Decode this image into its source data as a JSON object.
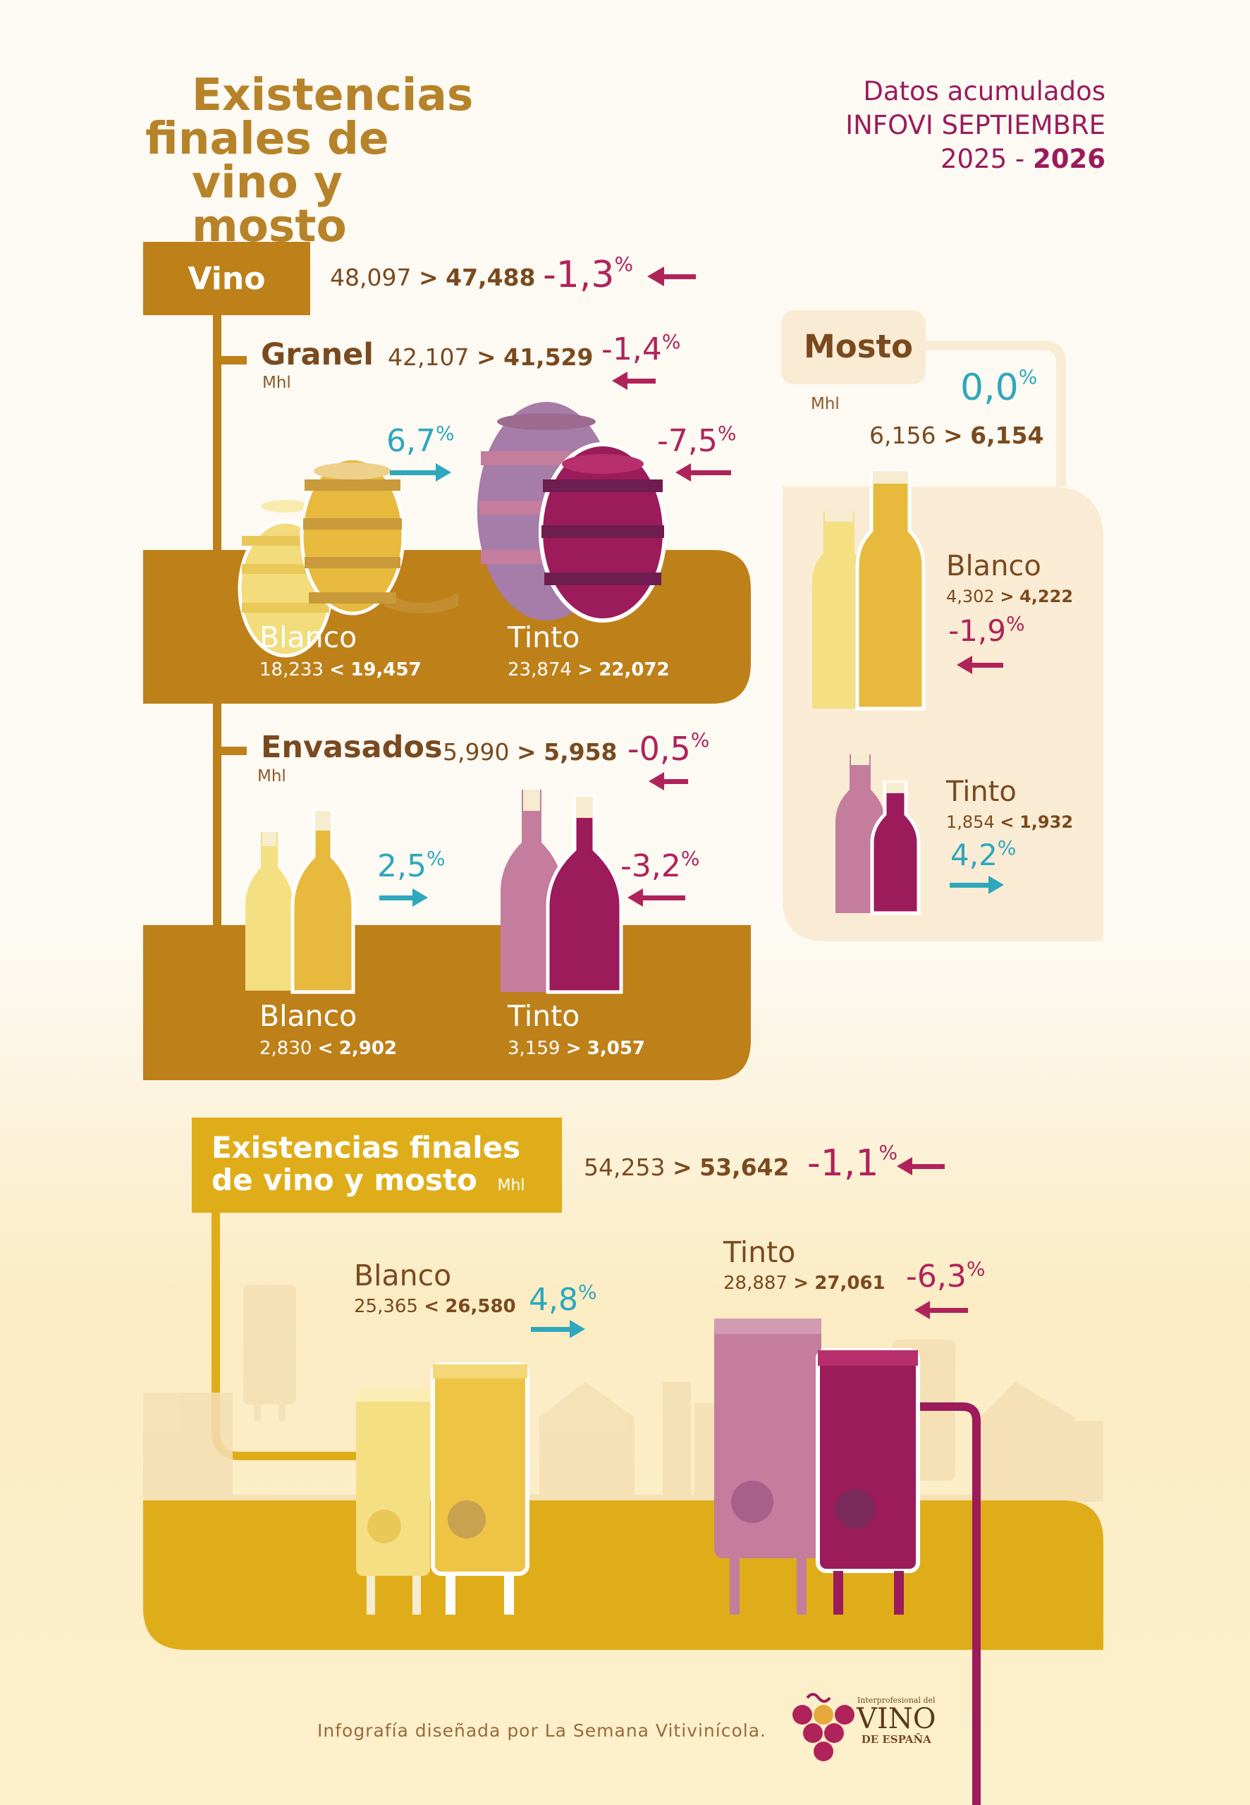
{
  "title": {
    "line1": "Existencias",
    "line2": "finales de",
    "line3": "vino y mosto"
  },
  "header": {
    "line1": "Datos acumulados",
    "line2": "INFOVI  SEPTIEMBRE",
    "year_from": "2025 -",
    "year_to": "2026"
  },
  "vino": {
    "label": "Vino",
    "from": "48,097",
    "sign": ">",
    "to": "47,488",
    "pct": "-1,3",
    "pct_sym": "%"
  },
  "granel": {
    "label": "Granel",
    "unit": "Mhl",
    "from": "42,107",
    "sign": ">",
    "to": "41,529",
    "pct": "-1,4",
    "pct_sym": "%",
    "blanco": {
      "label": "Blanco",
      "from": "18,233",
      "sign": "<",
      "to": "19,457",
      "pct": "6,7",
      "pct_sym": "%"
    },
    "tinto": {
      "label": "Tinto",
      "from": "23,874",
      "sign": ">",
      "to": "22,072",
      "pct": "-7,5",
      "pct_sym": "%"
    }
  },
  "envasados": {
    "label": "Envasados",
    "unit": "Mhl",
    "from": "5,990",
    "sign": ">",
    "to": "5,958",
    "pct": "-0,5",
    "pct_sym": "%",
    "blanco": {
      "label": "Blanco",
      "from": "2,830",
      "sign": "<",
      "to": "2,902",
      "pct": "2,5",
      "pct_sym": "%"
    },
    "tinto": {
      "label": "Tinto",
      "from": "3,159",
      "sign": ">",
      "to": "3,057",
      "pct": "-3,2",
      "pct_sym": "%"
    }
  },
  "mosto": {
    "label": "Mosto",
    "unit": "Mhl",
    "from": "6,156",
    "sign": ">",
    "to": "6,154",
    "pct": "0,0",
    "pct_sym": "%",
    "blanco": {
      "label": "Blanco",
      "from": "4,302",
      "sign": ">",
      "to": "4,222",
      "pct": "-1,9",
      "pct_sym": "%"
    },
    "tinto": {
      "label": "Tinto",
      "from": "1,854",
      "sign": "<",
      "to": "1,932",
      "pct": "4,2",
      "pct_sym": "%"
    }
  },
  "total": {
    "label_line1": "Existencias finales",
    "label_line2": "de vino y mosto",
    "unit": "Mhl",
    "from": "54,253",
    "sign": ">",
    "to": "53,642",
    "pct": "-1,1",
    "pct_sym": "%",
    "blanco": {
      "label": "Blanco",
      "from": "25,365",
      "sign": "<",
      "to": "26,580",
      "pct": "4,8",
      "pct_sym": "%"
    },
    "tinto": {
      "label": "Tinto",
      "from": "28,887",
      "sign": ">",
      "to": "27,061",
      "pct": "-6,3",
      "pct_sym": "%"
    }
  },
  "footer": {
    "credit": "Infografía diseñada por La Semana Vitivinícola.",
    "logo_small": "Interprofesional del",
    "logo_main": "VINO",
    "logo_sub": "DE ESPAÑA"
  },
  "colors": {
    "gold": "#b7832a",
    "mustard": "#e0ad1a",
    "cream": "#faecd4",
    "wine": "#9b1b5b",
    "rose": "#c47d9d",
    "teal": "#2fa7bd",
    "red_arrow": "#b0235a"
  }
}
